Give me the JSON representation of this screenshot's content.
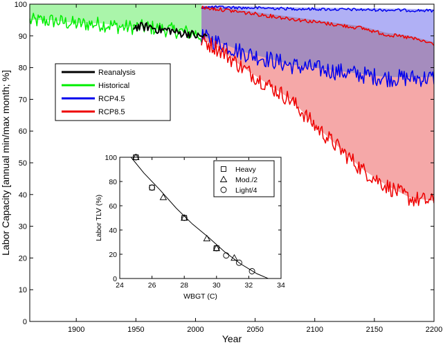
{
  "chart_data": [
    {
      "type": "line",
      "xlabel": "Year",
      "ylabel": "Labor Capacity [annual min/max month; %]",
      "xlim": [
        1861,
        2200
      ],
      "ylim": [
        0,
        100
      ],
      "xticks": [
        1900,
        1950,
        2000,
        2050,
        2100,
        2150,
        2200
      ],
      "yticks": [
        0,
        10,
        20,
        30,
        40,
        50,
        60,
        70,
        80,
        90,
        100
      ],
      "legend_position": "upper-left",
      "colors": {
        "Reanalysis": "#000000",
        "Historical": "#00ee00",
        "RCP4.5": "#0000ee",
        "RCP8.5": "#ee0000"
      },
      "fill_colors": {
        "Historical": "#aaf5aa",
        "RCP4.5": "#b0b0f5",
        "RCP8.5": "#f5a8a8",
        "overlap": "#a58cbe"
      },
      "series": [
        {
          "name": "Reanalysis",
          "x": [
            1948,
            1955,
            1962,
            1970,
            1978,
            1986,
            1994,
            2002,
            2010
          ],
          "min": [
            93,
            93,
            93,
            92,
            92,
            91,
            91,
            90,
            90
          ],
          "max": [
            100,
            100,
            100,
            100,
            100,
            100,
            100,
            100,
            100
          ]
        },
        {
          "name": "Historical",
          "x": [
            1861,
            1880,
            1900,
            1920,
            1940,
            1960,
            1980,
            2000,
            2005
          ],
          "min": [
            95,
            95,
            94,
            94,
            93,
            93,
            92,
            91,
            90
          ],
          "max": [
            100,
            100,
            100,
            100,
            100,
            100,
            100,
            100,
            100
          ]
        },
        {
          "name": "RCP4.5",
          "x": [
            2005,
            2020,
            2040,
            2060,
            2080,
            2100,
            2120,
            2140,
            2160,
            2180,
            2200
          ],
          "min": [
            90,
            88,
            85,
            83,
            81,
            80,
            79,
            78,
            77,
            77,
            77
          ],
          "max": [
            99.5,
            99.5,
            99.3,
            99.2,
            99,
            98.9,
            98.8,
            98.7,
            98.6,
            98.5,
            98.4
          ]
        },
        {
          "name": "RCP8.5",
          "x": [
            2005,
            2020,
            2040,
            2060,
            2080,
            2100,
            2120,
            2140,
            2160,
            2180,
            2200
          ],
          "min": [
            89,
            86,
            80,
            75,
            70,
            62,
            55,
            48,
            43,
            39,
            38
          ],
          "max": [
            99.5,
            99,
            98,
            97,
            96,
            95,
            94,
            93,
            91,
            90,
            88
          ]
        }
      ]
    },
    {
      "type": "scatter",
      "xlabel": "WBGT (C)",
      "ylabel": "Labor TLV (%)",
      "xlim": [
        24,
        34
      ],
      "ylim": [
        0,
        100
      ],
      "xticks": [
        24,
        26,
        28,
        30,
        32,
        34
      ],
      "yticks": [
        0,
        20,
        40,
        60,
        80,
        100
      ],
      "legend_position": "top-right",
      "series": [
        {
          "name": "Heavy",
          "marker": "square",
          "x": [
            25,
            26,
            28,
            30
          ],
          "y": [
            100,
            75,
            50,
            25
          ]
        },
        {
          "name": "Mod./2",
          "marker": "triangle",
          "x": [
            25,
            26.7,
            28,
            29.4,
            30,
            31.1
          ],
          "y": [
            100,
            67,
            50,
            33,
            25,
            17
          ]
        },
        {
          "name": "Light/4",
          "marker": "circle",
          "x": [
            25,
            26,
            28,
            30,
            30.6,
            31.4,
            32.2
          ],
          "y": [
            100,
            75,
            50,
            25,
            19,
            13,
            6
          ]
        }
      ],
      "fit_curve": {
        "x": [
          24.7,
          25.5,
          26.5,
          27.5,
          28.5,
          29.5,
          30.5,
          31.5,
          32.5,
          33.2
        ],
        "y": [
          100,
          87,
          73,
          58,
          45,
          34,
          22,
          12,
          4,
          0
        ]
      }
    }
  ]
}
